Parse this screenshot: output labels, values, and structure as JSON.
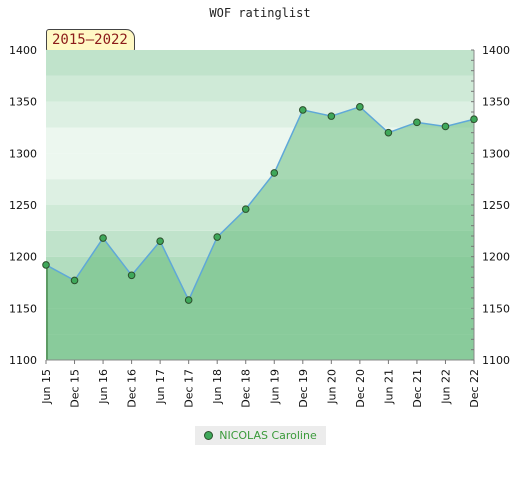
{
  "chart_data": {
    "type": "area",
    "title": "WOF ratinglist",
    "period_label": "2015–2022",
    "x": [
      "Jun 15",
      "Dec 15",
      "Jun 16",
      "Dec 16",
      "Jun 17",
      "Dec 17",
      "Jun 18",
      "Dec 18",
      "Jun 19",
      "Dec 19",
      "Jun 20",
      "Dec 20",
      "Jun 21",
      "Dec 21",
      "Jun 22",
      "Dec 22"
    ],
    "series": [
      {
        "name": "NICOLAS Caroline",
        "values": [
          1192,
          1177,
          1218,
          1182,
          1215,
          1158,
          1219,
          1246,
          1281,
          1342,
          1336,
          1345,
          1320,
          1330,
          1326,
          1333
        ]
      }
    ],
    "ylim": [
      1100,
      1400
    ],
    "yticks": [
      1100,
      1150,
      1200,
      1250,
      1300,
      1350,
      1400
    ],
    "y_axis_both_sides": true,
    "legend": "bottom-center",
    "colors": {
      "line": "#5fa8d8",
      "marker": "#3fa85a",
      "marker_edge": "#2b4f2b",
      "fill": "#5fba78",
      "band_dark": "#b2ddbf",
      "band_light": "#f3faf5"
    }
  }
}
